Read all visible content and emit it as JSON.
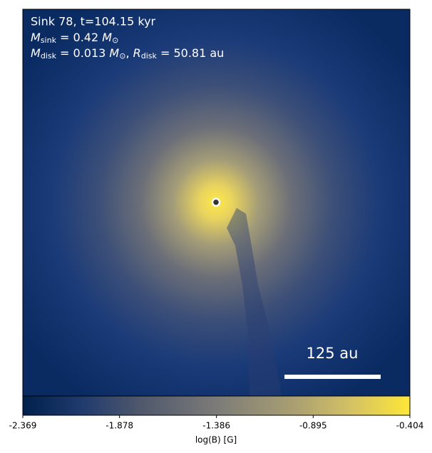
{
  "chart_data": {
    "type": "colormap",
    "annotations": {
      "line1": "Sink 78, t=104.15 kyr",
      "line2": [
        "M",
        "sink",
        " = 0.42 ",
        "M",
        "⊙"
      ],
      "line3": [
        "M",
        "disk",
        " = 0.013 ",
        "M",
        "⊙",
        ", ",
        "R",
        "disk",
        " = 50.81 au"
      ]
    },
    "scale_bar": "125 au",
    "colormap": "cividis",
    "colorbar_label": "log(B) [G]",
    "clim": [
      -2.369,
      -0.404
    ],
    "cticks": [
      -2.369,
      -1.878,
      -1.386,
      -0.895,
      -0.404
    ]
  }
}
